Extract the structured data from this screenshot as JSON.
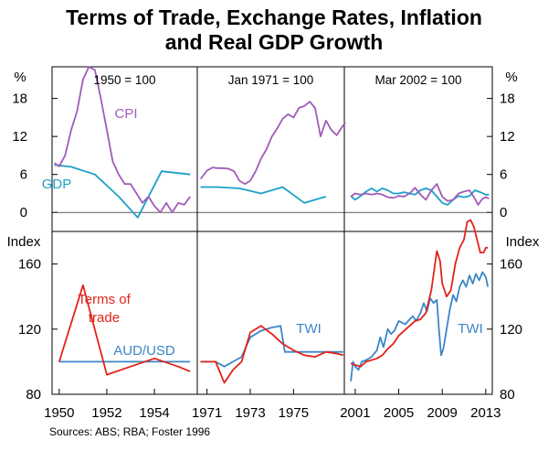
{
  "title_line1": "Terms of Trade, Exchange Rates, Inflation",
  "title_line2": "and Real GDP Growth",
  "source": "Sources: ABS; RBA; Foster 1996",
  "colors": {
    "cpi": "#a05bb8",
    "gdp": "#1ea0c8",
    "tot": "#e2231a",
    "fx": "#3a86c8",
    "grid": "#000000"
  },
  "chart_data": {
    "type": "line",
    "top_panel": {
      "y_unit": "%",
      "ylim": [
        -3,
        23
      ],
      "yticks": [
        0,
        6,
        12,
        18
      ],
      "series_labels": {
        "cpi": "CPI",
        "gdp": "GDP"
      }
    },
    "bottom_panel": {
      "y_unit": "Index",
      "ylim": [
        80,
        180
      ],
      "yticks": [
        80,
        120,
        160
      ],
      "series_labels": {
        "tot_line1": "Terms of",
        "tot_line2": "trade",
        "fx_left": "AUD/USD",
        "twi_mid": "TWI",
        "twi_right": "TWI"
      }
    },
    "periods": [
      {
        "base_label": "1950 = 100",
        "xlim": [
          1949.7,
          1955.8
        ],
        "xticks": [
          1950,
          1952,
          1954
        ],
        "xtick_labels": [
          "1950",
          "1952",
          "1954"
        ],
        "cpi": [
          [
            1949.8,
            7.8
          ],
          [
            1950.0,
            7.3
          ],
          [
            1950.25,
            9
          ],
          [
            1950.5,
            13
          ],
          [
            1950.75,
            16
          ],
          [
            1951.0,
            21
          ],
          [
            1951.25,
            23
          ],
          [
            1951.5,
            22.5
          ],
          [
            1951.75,
            18
          ],
          [
            1952.0,
            13
          ],
          [
            1952.25,
            8
          ],
          [
            1952.5,
            6
          ],
          [
            1952.75,
            4.5
          ],
          [
            1953.0,
            4.5
          ],
          [
            1953.25,
            3
          ],
          [
            1953.5,
            1.5
          ],
          [
            1953.75,
            2.5
          ],
          [
            1954.0,
            1
          ],
          [
            1954.25,
            0
          ],
          [
            1954.5,
            1.5
          ],
          [
            1954.75,
            0
          ],
          [
            1955.0,
            1.5
          ],
          [
            1955.25,
            1.2
          ],
          [
            1955.5,
            2.5
          ]
        ],
        "gdp": [
          [
            1949.8,
            7.5
          ],
          [
            1950.5,
            7.2
          ],
          [
            1951.5,
            6
          ],
          [
            1952.5,
            2.5
          ],
          [
            1953.3,
            -0.8
          ],
          [
            1954.3,
            6.5
          ],
          [
            1955.5,
            6
          ]
        ],
        "tot": [
          [
            1950.0,
            100
          ],
          [
            1951.0,
            147
          ],
          [
            1952.0,
            92
          ],
          [
            1953.0,
            97
          ],
          [
            1954.0,
            102
          ],
          [
            1955.0,
            97
          ],
          [
            1955.5,
            94
          ]
        ],
        "fx": [
          [
            1950.0,
            100
          ],
          [
            1955.5,
            100
          ]
        ]
      },
      {
        "base_label": "Jan 1971 = 100",
        "xlim": [
          1970.55,
          1977.35
        ],
        "xticks": [
          1971,
          1973,
          1975
        ],
        "xtick_labels": [
          "1971",
          "1973",
          "1975"
        ],
        "cpi": [
          [
            1970.7,
            5.3
          ],
          [
            1971.0,
            6.6
          ],
          [
            1971.25,
            7.1
          ],
          [
            1971.5,
            7.0
          ],
          [
            1971.75,
            7.0
          ],
          [
            1972.0,
            6.9
          ],
          [
            1972.25,
            6.5
          ],
          [
            1972.5,
            5.0
          ],
          [
            1972.75,
            4.5
          ],
          [
            1973.0,
            5.0
          ],
          [
            1973.25,
            6.5
          ],
          [
            1973.5,
            8.5
          ],
          [
            1973.75,
            10
          ],
          [
            1974.0,
            12
          ],
          [
            1974.25,
            13.3
          ],
          [
            1974.5,
            14.8
          ],
          [
            1974.75,
            15.5
          ],
          [
            1975.0,
            15.0
          ],
          [
            1975.25,
            16.5
          ],
          [
            1975.5,
            16.8
          ],
          [
            1975.75,
            17.5
          ],
          [
            1976.0,
            16.5
          ],
          [
            1976.25,
            12
          ],
          [
            1976.5,
            14.5
          ],
          [
            1976.75,
            13
          ],
          [
            1977.0,
            12.2
          ],
          [
            1977.25,
            13.5
          ],
          [
            1977.4,
            14.2
          ]
        ],
        "gdp": [
          [
            1970.7,
            4.0
          ],
          [
            1971.5,
            4.0
          ],
          [
            1972.5,
            3.8
          ],
          [
            1973.5,
            3.0
          ],
          [
            1974.5,
            4.0
          ],
          [
            1975.5,
            1.5
          ],
          [
            1976.5,
            2.5
          ]
        ],
        "tot": [
          [
            1970.7,
            100
          ],
          [
            1971.4,
            100
          ],
          [
            1971.8,
            87
          ],
          [
            1972.2,
            95
          ],
          [
            1972.6,
            100
          ],
          [
            1973.0,
            118
          ],
          [
            1973.5,
            122
          ],
          [
            1974.0,
            117
          ],
          [
            1974.5,
            111
          ],
          [
            1975.0,
            107
          ],
          [
            1975.5,
            104
          ],
          [
            1976.0,
            103
          ],
          [
            1976.5,
            106
          ],
          [
            1977.0,
            105
          ],
          [
            1977.3,
            104
          ]
        ],
        "fx": [
          [
            1970.7,
            100
          ],
          [
            1971.4,
            100
          ],
          [
            1971.8,
            97
          ],
          [
            1972.2,
            100
          ],
          [
            1972.6,
            103
          ],
          [
            1973.0,
            115
          ],
          [
            1973.5,
            119
          ],
          [
            1974.0,
            121
          ],
          [
            1974.4,
            122
          ],
          [
            1974.6,
            106
          ],
          [
            1975.0,
            106
          ],
          [
            1975.5,
            106
          ],
          [
            1976.0,
            106
          ],
          [
            1976.5,
            106
          ],
          [
            1977.0,
            106
          ],
          [
            1977.3,
            106
          ]
        ]
      },
      {
        "base_label": "Mar 2002 = 100",
        "xlim": [
          2000.0,
          2013.6
        ],
        "xticks": [
          2001,
          2005,
          2009,
          2013
        ],
        "xtick_labels": [
          "2001",
          "2005",
          "2009",
          "2013"
        ],
        "cpi": [
          [
            2000.6,
            2.5
          ],
          [
            2001.0,
            3.0
          ],
          [
            2001.5,
            2.8
          ],
          [
            2002.0,
            3.0
          ],
          [
            2002.5,
            2.8
          ],
          [
            2003.0,
            3.0
          ],
          [
            2003.5,
            2.8
          ],
          [
            2004.0,
            2.4
          ],
          [
            2004.5,
            2.3
          ],
          [
            2005.0,
            2.6
          ],
          [
            2005.5,
            2.5
          ],
          [
            2006.0,
            3.0
          ],
          [
            2006.5,
            3.9
          ],
          [
            2007.0,
            2.8
          ],
          [
            2007.5,
            2.0
          ],
          [
            2008.0,
            3.5
          ],
          [
            2008.5,
            4.5
          ],
          [
            2009.0,
            2.5
          ],
          [
            2009.5,
            1.8
          ],
          [
            2010.0,
            2.0
          ],
          [
            2010.5,
            3.0
          ],
          [
            2011.0,
            3.3
          ],
          [
            2011.5,
            3.5
          ],
          [
            2012.0,
            2.2
          ],
          [
            2012.3,
            1.2
          ],
          [
            2012.7,
            2.2
          ],
          [
            2013.0,
            2.4
          ],
          [
            2013.3,
            2.2
          ]
        ],
        "gdp": [
          [
            2000.6,
            2.6
          ],
          [
            2001.0,
            2.0
          ],
          [
            2001.5,
            2.6
          ],
          [
            2002.0,
            3.3
          ],
          [
            2002.5,
            3.8
          ],
          [
            2003.0,
            3.3
          ],
          [
            2003.5,
            3.8
          ],
          [
            2004.0,
            3.5
          ],
          [
            2004.5,
            3.0
          ],
          [
            2005.0,
            3.0
          ],
          [
            2005.5,
            3.2
          ],
          [
            2006.0,
            3.0
          ],
          [
            2006.5,
            2.8
          ],
          [
            2007.0,
            3.5
          ],
          [
            2007.5,
            3.8
          ],
          [
            2008.0,
            3.5
          ],
          [
            2008.5,
            2.5
          ],
          [
            2009.0,
            1.5
          ],
          [
            2009.5,
            1.2
          ],
          [
            2010.0,
            2.0
          ],
          [
            2010.5,
            2.6
          ],
          [
            2011.0,
            2.4
          ],
          [
            2011.5,
            2.6
          ],
          [
            2012.0,
            3.5
          ],
          [
            2012.5,
            3.2
          ],
          [
            2013.0,
            2.8
          ],
          [
            2013.3,
            2.8
          ]
        ],
        "tot": [
          [
            2000.6,
            99
          ],
          [
            2001.0,
            98
          ],
          [
            2001.5,
            97
          ],
          [
            2002.0,
            100
          ],
          [
            2002.5,
            101
          ],
          [
            2003.0,
            102
          ],
          [
            2003.5,
            104
          ],
          [
            2004.0,
            108
          ],
          [
            2004.5,
            111
          ],
          [
            2005.0,
            116
          ],
          [
            2005.5,
            119
          ],
          [
            2006.0,
            122
          ],
          [
            2006.5,
            125
          ],
          [
            2007.0,
            126
          ],
          [
            2007.5,
            130
          ],
          [
            2008.0,
            144
          ],
          [
            2008.5,
            168
          ],
          [
            2008.8,
            162
          ],
          [
            2009.0,
            148
          ],
          [
            2009.4,
            140
          ],
          [
            2009.8,
            144
          ],
          [
            2010.2,
            160
          ],
          [
            2010.6,
            170
          ],
          [
            2011.0,
            175
          ],
          [
            2011.3,
            186
          ],
          [
            2011.6,
            187
          ],
          [
            2011.9,
            183
          ],
          [
            2012.2,
            175
          ],
          [
            2012.5,
            167
          ],
          [
            2012.8,
            167
          ],
          [
            2013.0,
            170
          ],
          [
            2013.2,
            170
          ]
        ],
        "fx": [
          [
            2000.6,
            88
          ],
          [
            2000.8,
            100
          ],
          [
            2001.0,
            97
          ],
          [
            2001.3,
            95
          ],
          [
            2001.6,
            100
          ],
          [
            2002.0,
            101
          ],
          [
            2002.5,
            103
          ],
          [
            2003.0,
            107
          ],
          [
            2003.3,
            115
          ],
          [
            2003.6,
            109
          ],
          [
            2004.0,
            120
          ],
          [
            2004.3,
            117
          ],
          [
            2004.6,
            119
          ],
          [
            2005.0,
            125
          ],
          [
            2005.3,
            124
          ],
          [
            2005.6,
            123
          ],
          [
            2006.0,
            126
          ],
          [
            2006.3,
            128
          ],
          [
            2006.6,
            125
          ],
          [
            2007.0,
            130
          ],
          [
            2007.3,
            136
          ],
          [
            2007.6,
            131
          ],
          [
            2007.9,
            139
          ],
          [
            2008.2,
            136
          ],
          [
            2008.5,
            138
          ],
          [
            2008.7,
            120
          ],
          [
            2008.9,
            104
          ],
          [
            2009.1,
            108
          ],
          [
            2009.4,
            120
          ],
          [
            2009.7,
            132
          ],
          [
            2010.0,
            141
          ],
          [
            2010.3,
            137
          ],
          [
            2010.6,
            146
          ],
          [
            2010.9,
            150
          ],
          [
            2011.2,
            146
          ],
          [
            2011.5,
            153
          ],
          [
            2011.8,
            148
          ],
          [
            2012.1,
            154
          ],
          [
            2012.4,
            150
          ],
          [
            2012.7,
            155
          ],
          [
            2013.0,
            152
          ],
          [
            2013.2,
            146
          ]
        ]
      }
    ]
  }
}
